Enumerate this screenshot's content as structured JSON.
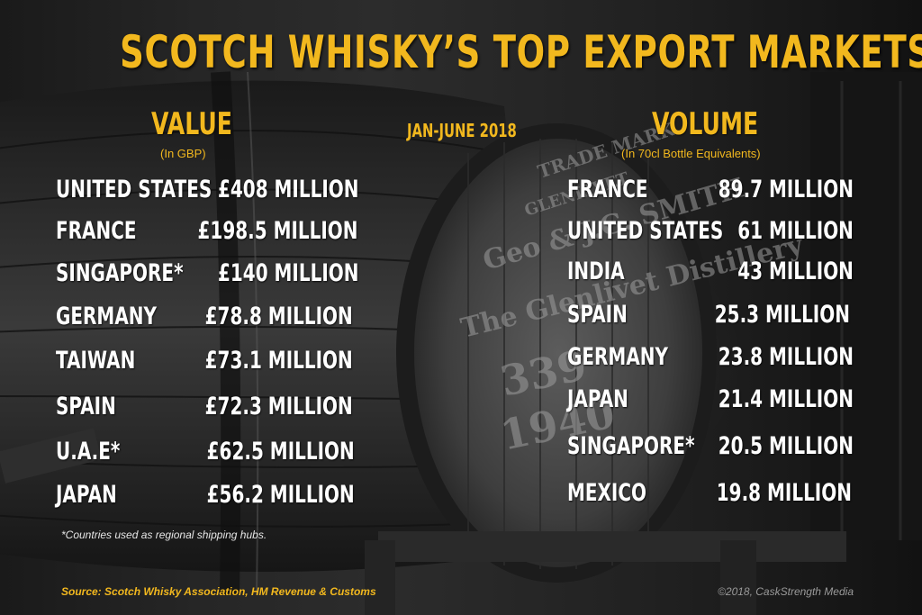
{
  "title": "SCOTCH WHISKY’S TOP EXPORT MARKETS",
  "period": "JAN-JUNE 2018",
  "value": {
    "heading": "VALUE",
    "unit": "(In GBP)",
    "rows": [
      {
        "country": "UNITED STATES",
        "amount": "£408 MILLION"
      },
      {
        "country": "FRANCE",
        "amount": "£198.5 MILLION"
      },
      {
        "country": "SINGAPORE*",
        "amount": "£140 MILLION"
      },
      {
        "country": "GERMANY",
        "amount": "£78.8 MILLION"
      },
      {
        "country": "TAIWAN",
        "amount": "£73.1 MILLION"
      },
      {
        "country": "SPAIN",
        "amount": "£72.3 MILLION"
      },
      {
        "country": "U.A.E*",
        "amount": "£62.5 MILLION"
      },
      {
        "country": "JAPAN",
        "amount": "£56.2 MILLION"
      }
    ]
  },
  "volume": {
    "heading": "VOLUME",
    "unit": "(In 70cl Bottle Equivalents)",
    "rows": [
      {
        "country": "FRANCE",
        "amount": "89.7 MILLION"
      },
      {
        "country": "UNITED STATES",
        "amount": "61 MILLION"
      },
      {
        "country": "INDIA",
        "amount": "43 MILLION"
      },
      {
        "country": "SPAIN",
        "amount": "25.3 MILLION"
      },
      {
        "country": "GERMANY",
        "amount": "23.8 MILLION"
      },
      {
        "country": "JAPAN",
        "amount": "21.4 MILLION"
      },
      {
        "country": "SINGAPORE*",
        "amount": "20.5 MILLION"
      },
      {
        "country": "MEXICO",
        "amount": "19.8 MILLION"
      }
    ]
  },
  "footnote": "*Countries used as regional shipping hubs.",
  "source": "Source: Scotch Whisky Association, HM Revenue & Customs",
  "copyright": "©2018, CaskStrength Media",
  "colors": {
    "accent": "#f2b81e",
    "text": "#ffffff",
    "background": "#1f1f1f"
  },
  "background_image": {
    "subject": "whisky-barrel",
    "cask_markings": [
      "TRADE MARK",
      "GLENLIVET",
      "Geo & J.G. SMITH",
      "The Glenlivet Distillery",
      "339",
      "1940"
    ]
  }
}
